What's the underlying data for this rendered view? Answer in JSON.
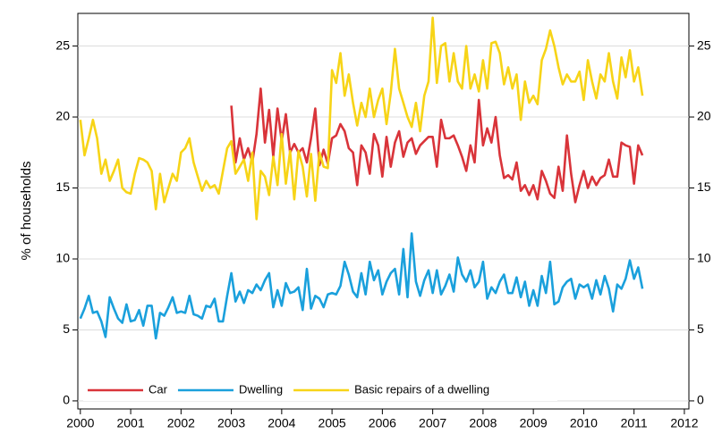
{
  "chart_data": {
    "type": "line",
    "y_label": "% of households",
    "x": [
      2000,
      2000.083,
      2000.167,
      2000.25,
      2000.333,
      2000.417,
      2000.5,
      2000.583,
      2000.667,
      2000.75,
      2000.833,
      2000.917,
      2001,
      2001.083,
      2001.167,
      2001.25,
      2001.333,
      2001.417,
      2001.5,
      2001.583,
      2001.667,
      2001.75,
      2001.833,
      2001.917,
      2002,
      2002.083,
      2002.167,
      2002.25,
      2002.333,
      2002.417,
      2002.5,
      2002.583,
      2002.667,
      2002.75,
      2002.833,
      2002.917,
      2003,
      2003.083,
      2003.167,
      2003.25,
      2003.333,
      2003.417,
      2003.5,
      2003.583,
      2003.667,
      2003.75,
      2003.833,
      2003.917,
      2004,
      2004.083,
      2004.167,
      2004.25,
      2004.333,
      2004.417,
      2004.5,
      2004.583,
      2004.667,
      2004.75,
      2004.833,
      2004.917,
      2005,
      2005.083,
      2005.167,
      2005.25,
      2005.333,
      2005.417,
      2005.5,
      2005.583,
      2005.667,
      2005.75,
      2005.833,
      2005.917,
      2006,
      2006.083,
      2006.167,
      2006.25,
      2006.333,
      2006.417,
      2006.5,
      2006.583,
      2006.667,
      2006.75,
      2006.833,
      2006.917,
      2007,
      2007.083,
      2007.167,
      2007.25,
      2007.333,
      2007.417,
      2007.5,
      2007.583,
      2007.667,
      2007.75,
      2007.833,
      2007.917,
      2008,
      2008.083,
      2008.167,
      2008.25,
      2008.333,
      2008.417,
      2008.5,
      2008.583,
      2008.667,
      2008.75,
      2008.833,
      2008.917,
      2009,
      2009.083,
      2009.167,
      2009.25,
      2009.333,
      2009.417,
      2009.5,
      2009.583,
      2009.667,
      2009.75,
      2009.833,
      2009.917,
      2010,
      2010.083,
      2010.167,
      2010.25,
      2010.333,
      2010.417,
      2010.5,
      2010.583,
      2010.667,
      2010.75,
      2010.833,
      2010.917,
      2011,
      2011.083,
      2011.167
    ],
    "series": [
      {
        "name": "Car",
        "color": "#d9343a",
        "values": [
          null,
          null,
          null,
          null,
          null,
          null,
          null,
          null,
          null,
          null,
          null,
          null,
          null,
          null,
          null,
          null,
          null,
          null,
          null,
          null,
          null,
          null,
          null,
          null,
          null,
          null,
          null,
          null,
          null,
          null,
          null,
          null,
          null,
          null,
          null,
          null,
          20.8,
          16.8,
          18.5,
          17.0,
          17.8,
          16.8,
          18.8,
          22.0,
          18.2,
          20.5,
          17.2,
          20.6,
          18.3,
          20.2,
          17.5,
          18.1,
          17.5,
          17.8,
          16.8,
          18.5,
          20.6,
          16.6,
          17.7,
          16.7,
          18.5,
          18.7,
          19.5,
          19.0,
          17.8,
          17.5,
          15.2,
          18.0,
          17.5,
          16.0,
          18.8,
          18.0,
          15.8,
          18.6,
          16.5,
          18.2,
          19.0,
          17.2,
          18.2,
          18.5,
          17.4,
          18.0,
          18.3,
          18.6,
          18.6,
          16.5,
          19.8,
          18.5,
          18.5,
          18.7,
          18.0,
          17.2,
          16.2,
          18.0,
          16.8,
          21.2,
          18.0,
          19.2,
          18.2,
          20.0,
          17.3,
          15.7,
          15.9,
          15.6,
          16.8,
          14.8,
          15.2,
          14.5,
          15.2,
          14.2,
          16.2,
          15.5,
          14.6,
          14.3,
          16.5,
          14.8,
          18.7,
          16.0,
          14.0,
          15.2,
          16.2,
          15.0,
          15.8,
          15.2,
          15.7,
          15.9,
          17.0,
          15.8,
          15.8,
          18.2,
          18.0,
          17.9,
          15.3,
          18.0,
          17.3
        ]
      },
      {
        "name": "Dwelling",
        "color": "#1aa0dc",
        "values": [
          5.8,
          6.5,
          7.4,
          6.2,
          6.3,
          5.6,
          4.5,
          7.3,
          6.5,
          5.8,
          5.5,
          6.8,
          5.6,
          5.7,
          6.4,
          5.3,
          6.7,
          6.7,
          4.4,
          6.2,
          6.0,
          6.6,
          7.3,
          6.2,
          6.3,
          6.2,
          7.4,
          6.1,
          6.0,
          5.8,
          6.7,
          6.6,
          7.2,
          5.6,
          5.6,
          7.4,
          9.0,
          7.0,
          7.7,
          6.9,
          7.8,
          7.6,
          8.2,
          7.8,
          8.5,
          9.0,
          6.6,
          7.8,
          6.7,
          8.3,
          7.6,
          7.7,
          8.0,
          6.4,
          9.3,
          6.5,
          7.4,
          7.2,
          6.6,
          7.5,
          7.6,
          7.5,
          8.1,
          9.8,
          8.9,
          7.7,
          7.3,
          9.0,
          7.5,
          9.8,
          8.5,
          9.2,
          7.5,
          8.4,
          9.0,
          9.3,
          7.5,
          10.7,
          7.3,
          11.8,
          8.4,
          7.4,
          8.5,
          9.2,
          7.6,
          9.2,
          7.5,
          8.1,
          8.9,
          7.7,
          10.1,
          8.9,
          8.4,
          9.2,
          8.0,
          8.4,
          9.8,
          7.2,
          8.0,
          7.6,
          8.4,
          8.9,
          7.6,
          7.6,
          8.7,
          7.3,
          8.4,
          6.7,
          7.8,
          6.7,
          8.8,
          7.6,
          9.8,
          6.8,
          7.0,
          8.0,
          8.4,
          8.6,
          7.2,
          8.2,
          8.0,
          8.2,
          7.2,
          8.5,
          7.5,
          8.8,
          7.9,
          6.3,
          8.2,
          7.9,
          8.6,
          9.9,
          8.6,
          9.4,
          7.9
        ]
      },
      {
        "name": "Basic repairs of a dwelling",
        "color": "#f7d417",
        "values": [
          19.8,
          17.3,
          18.5,
          19.8,
          18.5,
          16.0,
          17.0,
          15.5,
          16.2,
          17.0,
          15.0,
          14.7,
          14.6,
          16.0,
          17.1,
          17.0,
          16.8,
          16.2,
          13.5,
          16.0,
          14.0,
          15.0,
          16.0,
          15.5,
          17.5,
          17.8,
          18.5,
          16.8,
          15.8,
          14.8,
          15.5,
          15.0,
          15.2,
          14.6,
          16.2,
          17.8,
          18.3,
          16.0,
          16.5,
          17.0,
          15.5,
          17.5,
          12.8,
          16.2,
          15.8,
          14.5,
          17.2,
          15.2,
          18.8,
          15.3,
          17.6,
          14.2,
          17.6,
          16.5,
          14.4,
          17.4,
          14.1,
          17.5,
          16.5,
          16.4,
          23.3,
          22.4,
          24.5,
          21.5,
          23.0,
          21.0,
          19.4,
          21.0,
          20.0,
          22.0,
          20.0,
          21.2,
          22.0,
          19.5,
          21.7,
          24.8,
          22.0,
          21.0,
          20.0,
          19.3,
          21.0,
          19.0,
          21.5,
          22.5,
          27.0,
          22.4,
          25.0,
          25.2,
          22.5,
          24.5,
          22.5,
          22.0,
          25.0,
          22.0,
          23.0,
          21.8,
          24.0,
          22.0,
          25.2,
          25.3,
          24.5,
          22.3,
          23.5,
          22.0,
          23.0,
          19.8,
          22.5,
          21.0,
          21.5,
          20.9,
          24.0,
          24.8,
          26.1,
          25.0,
          23.5,
          22.3,
          23.0,
          22.5,
          22.5,
          23.2,
          21.2,
          24.0,
          22.5,
          21.3,
          23.0,
          22.5,
          24.5,
          22.5,
          21.3,
          24.2,
          22.8,
          24.7,
          22.5,
          23.5,
          21.5
        ]
      }
    ],
    "xlim": [
      1999.95,
      2012.09
    ],
    "xticks": [
      2000,
      2001,
      2002,
      2003,
      2004,
      2005,
      2006,
      2007,
      2008,
      2009,
      2010,
      2011,
      2012
    ],
    "ylim": [
      -0.57,
      27.3
    ],
    "yticks": [
      0,
      5,
      10,
      15,
      20,
      25
    ],
    "y2lim": [
      -0.57,
      27.3
    ],
    "y2ticks": [
      0,
      5,
      10,
      15,
      20,
      25
    ],
    "grid": true,
    "legend": "bottom-left"
  }
}
